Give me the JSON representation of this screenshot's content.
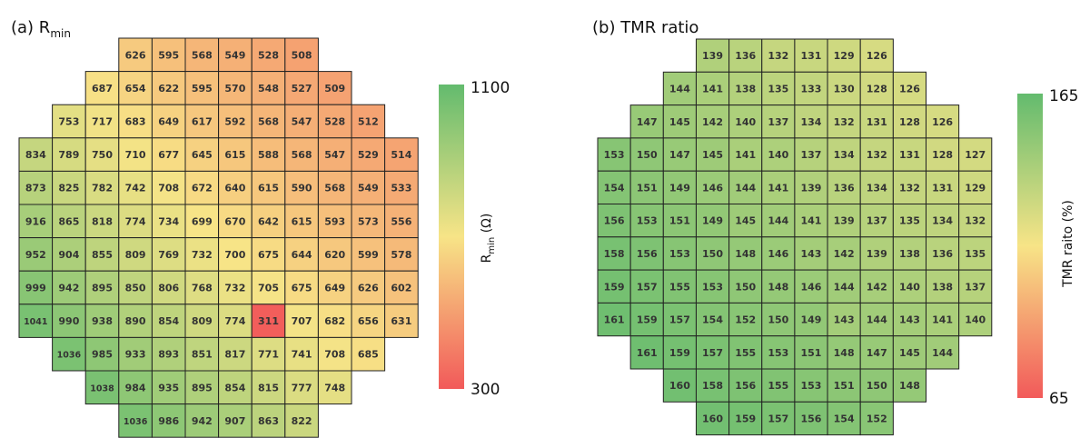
{
  "chart_data": [
    {
      "type": "heatmap",
      "title": "(a) R",
      "title_sub": "min",
      "colorbar_label": "R",
      "colorbar_label_sub": "min",
      "colorbar_label_unit": " (Ω)",
      "colorbar_min": 300,
      "colorbar_max": 1100,
      "colorbar_ticks": [
        "1100",
        "300"
      ],
      "colorscale": [
        "#f25a5a",
        "#f7e487",
        "#63bb6e"
      ],
      "rows": [
        {
          "start_col": 3,
          "values": [
            626,
            595,
            568,
            549,
            528,
            508
          ]
        },
        {
          "start_col": 2,
          "values": [
            687,
            654,
            622,
            595,
            570,
            548,
            527,
            509
          ]
        },
        {
          "start_col": 1,
          "values": [
            753,
            717,
            683,
            649,
            617,
            592,
            568,
            547,
            528,
            512
          ]
        },
        {
          "start_col": 0,
          "values": [
            834,
            789,
            750,
            710,
            677,
            645,
            615,
            588,
            568,
            547,
            529,
            514
          ]
        },
        {
          "start_col": 0,
          "values": [
            873,
            825,
            782,
            742,
            708,
            672,
            640,
            615,
            590,
            568,
            549,
            533
          ]
        },
        {
          "start_col": 0,
          "values": [
            916,
            865,
            818,
            774,
            734,
            699,
            670,
            642,
            615,
            593,
            573,
            556
          ]
        },
        {
          "start_col": 0,
          "values": [
            952,
            904,
            855,
            809,
            769,
            732,
            700,
            675,
            644,
            620,
            599,
            578
          ]
        },
        {
          "start_col": 0,
          "values": [
            999,
            942,
            895,
            850,
            806,
            768,
            732,
            705,
            675,
            649,
            626,
            602
          ]
        },
        {
          "start_col": 0,
          "values": [
            1041,
            990,
            938,
            890,
            854,
            809,
            774,
            311,
            707,
            682,
            656,
            631
          ]
        },
        {
          "start_col": 1,
          "values": [
            1036,
            985,
            933,
            893,
            851,
            817,
            771,
            741,
            708,
            685
          ]
        },
        {
          "start_col": 2,
          "values": [
            1038,
            984,
            935,
            895,
            854,
            815,
            777,
            748
          ]
        },
        {
          "start_col": 3,
          "values": [
            1036,
            986,
            942,
            907,
            863,
            822
          ]
        }
      ]
    },
    {
      "type": "heatmap",
      "title": "(b) TMR ratio",
      "colorbar_label": "TMR raito (%)",
      "colorbar_min": 65,
      "colorbar_max": 165,
      "colorbar_ticks": [
        "165",
        "65"
      ],
      "colorscale": [
        "#f25a5a",
        "#f7e487",
        "#63bb6e"
      ],
      "rows": [
        {
          "start_col": 3,
          "values": [
            139,
            136,
            132,
            131,
            129,
            126
          ]
        },
        {
          "start_col": 2,
          "values": [
            144,
            141,
            138,
            135,
            133,
            130,
            128,
            126
          ]
        },
        {
          "start_col": 1,
          "values": [
            147,
            145,
            142,
            140,
            137,
            134,
            132,
            131,
            128,
            126
          ]
        },
        {
          "start_col": 0,
          "values": [
            153,
            150,
            147,
            145,
            141,
            140,
            137,
            134,
            132,
            131,
            128,
            127
          ]
        },
        {
          "start_col": 0,
          "values": [
            154,
            151,
            149,
            146,
            144,
            141,
            139,
            136,
            134,
            132,
            131,
            129
          ]
        },
        {
          "start_col": 0,
          "values": [
            156,
            153,
            151,
            149,
            145,
            144,
            141,
            139,
            137,
            135,
            134,
            132
          ]
        },
        {
          "start_col": 0,
          "values": [
            158,
            156,
            153,
            150,
            148,
            146,
            143,
            142,
            139,
            138,
            136,
            135
          ]
        },
        {
          "start_col": 0,
          "values": [
            159,
            157,
            155,
            153,
            150,
            148,
            146,
            144,
            142,
            140,
            138,
            137
          ]
        },
        {
          "start_col": 0,
          "values": [
            161,
            159,
            157,
            154,
            152,
            150,
            149,
            143,
            144,
            143,
            141,
            140
          ]
        },
        {
          "start_col": 1,
          "values": [
            161,
            159,
            157,
            155,
            153,
            151,
            148,
            147,
            145,
            144
          ]
        },
        {
          "start_col": 2,
          "values": [
            160,
            158,
            156,
            155,
            153,
            151,
            150,
            148
          ]
        },
        {
          "start_col": 3,
          "values": [
            160,
            159,
            157,
            156,
            154,
            152
          ]
        }
      ]
    }
  ]
}
